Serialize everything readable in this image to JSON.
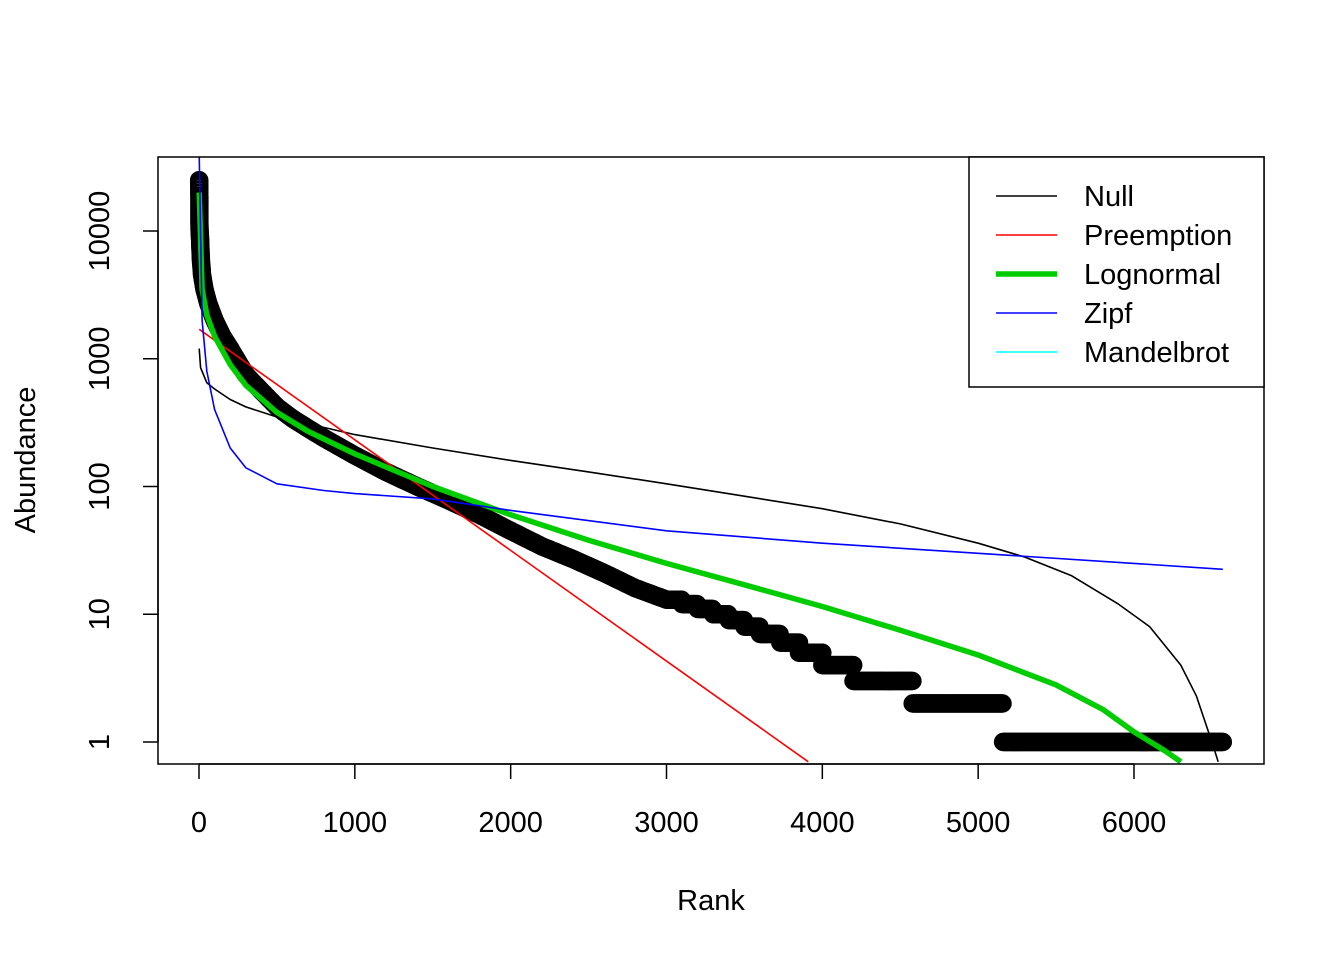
{
  "chart_data": {
    "type": "scatter",
    "title": "",
    "xlabel": "Rank",
    "ylabel": "Abundance",
    "xlim": [
      -270,
      6830
    ],
    "ylim": [
      0.7,
      40000
    ],
    "y_scale": "log",
    "x_ticks": [
      0,
      1000,
      2000,
      3000,
      4000,
      5000,
      6000
    ],
    "x_tick_labels": [
      "0",
      "1000",
      "2000",
      "3000",
      "4000",
      "5000",
      "6000"
    ],
    "y_ticks": [
      1,
      10,
      100,
      1000,
      10000
    ],
    "y_tick_labels": [
      "1",
      "10",
      "100",
      "1000",
      "10000"
    ],
    "grid": false,
    "legend_position": "top-right",
    "points": {
      "x": [
        1,
        2,
        3,
        5,
        8,
        12,
        20,
        35,
        60,
        100,
        150,
        200,
        300,
        400,
        500,
        600,
        700,
        800,
        900,
        1000,
        1200,
        1400,
        1600,
        1800,
        2000,
        2200,
        2400,
        2600,
        2800,
        3000
      ],
      "y": [
        25000,
        22000,
        10500,
        9500,
        8000,
        6000,
        4500,
        3500,
        2700,
        2000,
        1500,
        1200,
        750,
        560,
        420,
        340,
        285,
        240,
        205,
        175,
        130,
        100,
        78,
        60,
        45,
        34,
        27,
        21,
        16,
        13
      ],
      "steps": [
        {
          "x_start": 3000,
          "x_end": 3100,
          "y": 13
        },
        {
          "x_start": 3100,
          "x_end": 3200,
          "y": 12
        },
        {
          "x_start": 3200,
          "x_end": 3300,
          "y": 11
        },
        {
          "x_start": 3300,
          "x_end": 3400,
          "y": 10
        },
        {
          "x_start": 3400,
          "x_end": 3500,
          "y": 9
        },
        {
          "x_start": 3500,
          "x_end": 3600,
          "y": 8
        },
        {
          "x_start": 3600,
          "x_end": 3730,
          "y": 7
        },
        {
          "x_start": 3730,
          "x_end": 3850,
          "y": 6
        },
        {
          "x_start": 3850,
          "x_end": 4000,
          "y": 5
        },
        {
          "x_start": 4000,
          "x_end": 4200,
          "y": 4
        },
        {
          "x_start": 4200,
          "x_end": 4580,
          "y": 3
        },
        {
          "x_start": 4580,
          "x_end": 5160,
          "y": 2
        },
        {
          "x_start": 5160,
          "x_end": 6570,
          "y": 1
        }
      ]
    },
    "series": [
      {
        "name": "Null",
        "color": "#000000",
        "x": [
          1,
          10,
          50,
          100,
          200,
          300,
          500,
          800,
          1000,
          1500,
          2000,
          2500,
          3000,
          3500,
          4000,
          4500,
          5000,
          5300,
          5600,
          5900,
          6100,
          6300,
          6400,
          6500,
          6540
        ],
        "y": [
          1200,
          850,
          650,
          580,
          480,
          420,
          350,
          290,
          255,
          200,
          160,
          130,
          105,
          84,
          67,
          51,
          36,
          28,
          20,
          12,
          8,
          4,
          2.3,
          1,
          0.7
        ]
      },
      {
        "name": "Preemption",
        "color": "#ff0000",
        "x": [
          1,
          3910
        ],
        "y": [
          1700,
          0.7
        ]
      },
      {
        "name": "Lognormal",
        "color": "#00cc00",
        "x": [
          1,
          20,
          50,
          100,
          200,
          300,
          500,
          700,
          1000,
          1500,
          2000,
          2500,
          3000,
          3500,
          4000,
          4500,
          5000,
          5500,
          5800,
          6000,
          6200,
          6300
        ],
        "y": [
          20000,
          3500,
          2200,
          1500,
          900,
          620,
          380,
          270,
          180,
          100,
          60,
          38,
          25,
          17,
          11.5,
          7.5,
          4.8,
          2.8,
          1.8,
          1.2,
          0.85,
          0.7
        ]
      },
      {
        "name": "Zipf",
        "color": "#0000ff",
        "x": [
          1,
          20,
          50,
          100,
          200,
          300,
          500,
          800,
          1000,
          1500,
          2000,
          3000,
          4000,
          5000,
          6000,
          6570
        ],
        "y": [
          40000,
          2000,
          800,
          400,
          200,
          140,
          105,
          93,
          88,
          80,
          65,
          45,
          36,
          30,
          25,
          22.5
        ]
      },
      {
        "name": "Mandelbrot",
        "color": "#00ffff",
        "x": [],
        "y": []
      }
    ]
  },
  "legend": {
    "entries": [
      {
        "name": "Null",
        "color": "#000000",
        "width": 1.5
      },
      {
        "name": "Preemption",
        "color": "#ff0000",
        "width": 1.5
      },
      {
        "name": "Lognormal",
        "color": "#00cc00",
        "width": 5.5
      },
      {
        "name": "Zipf",
        "color": "#0000ff",
        "width": 1.5
      },
      {
        "name": "Mandelbrot",
        "color": "#00ffff",
        "width": 1.5
      }
    ]
  }
}
